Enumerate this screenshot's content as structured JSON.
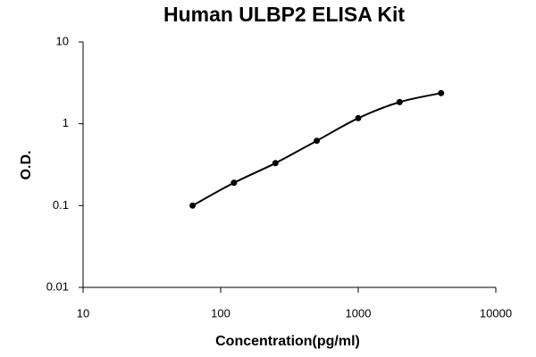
{
  "chart_data": {
    "type": "scatter",
    "title": "Human ULBP2 ELISA Kit",
    "x_label": "Concentration(pg/ml)",
    "y_label": "O.D.",
    "x": [
      62.5,
      125,
      250,
      500,
      1000,
      2000,
      4000
    ],
    "values": [
      0.1,
      0.19,
      0.33,
      0.62,
      1.17,
      1.84,
      2.37
    ],
    "color": "#000000",
    "xlog": true,
    "ylog": true,
    "xlim": [
      10,
      10000
    ],
    "xticks": [
      10,
      100,
      1000,
      10000
    ],
    "ylim": [
      0.01,
      10
    ],
    "yticks": [
      0.01,
      0.1,
      1,
      10
    ],
    "grid": false,
    "fit_line": true
  }
}
